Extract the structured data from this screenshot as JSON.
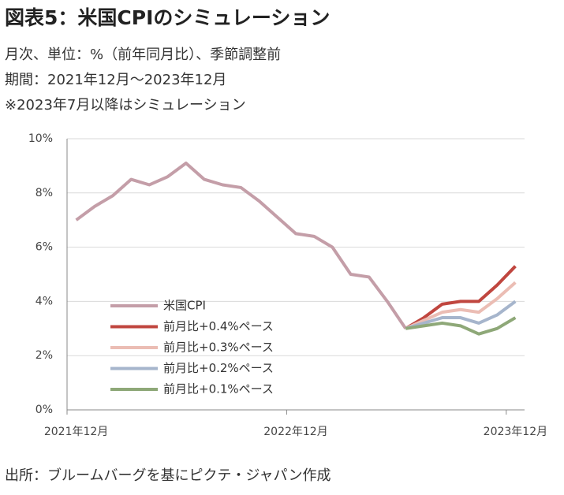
{
  "chart_data": {
    "type": "line",
    "title": "図表5：米国CPIのシミュレーション",
    "subtitles": [
      "月次、単位：%（前年同月比）、季節調整前",
      "期間：2021年12月～2023年12月",
      "※2023年7月以降はシミュレーション"
    ],
    "source": "出所：ブルームバーグを基にピクテ・ジャパン作成",
    "categories": [
      "2021年12月",
      null,
      null,
      null,
      null,
      null,
      null,
      null,
      null,
      null,
      null,
      null,
      "2022年12月",
      null,
      null,
      null,
      null,
      null,
      null,
      null,
      null,
      null,
      null,
      null,
      "2023年12月"
    ],
    "ylim": [
      0,
      10
    ],
    "yticks": [
      {
        "value": 0,
        "label": "0%"
      },
      {
        "value": 2,
        "label": "2%"
      },
      {
        "value": 4,
        "label": "4%"
      },
      {
        "value": 6,
        "label": "6%"
      },
      {
        "value": 8,
        "label": "8%"
      },
      {
        "value": 10,
        "label": "10%"
      }
    ],
    "grid": true,
    "legend": "lower left",
    "series": [
      {
        "name": "米国CPI",
        "color": "#c49ea8",
        "values": [
          7.0,
          7.5,
          7.9,
          8.5,
          8.3,
          8.6,
          9.1,
          8.5,
          8.3,
          8.2,
          7.7,
          7.1,
          6.5,
          6.4,
          6.0,
          5.0,
          4.9,
          4.0,
          3.0,
          null,
          null,
          null,
          null,
          null,
          null
        ]
      },
      {
        "name": "前月比+0.4%ペース",
        "color": "#c0463f",
        "values": [
          null,
          null,
          null,
          null,
          null,
          null,
          null,
          null,
          null,
          null,
          null,
          null,
          null,
          null,
          null,
          null,
          null,
          null,
          3.0,
          3.4,
          3.9,
          4.0,
          4.0,
          4.6,
          5.3
        ]
      },
      {
        "name": "前月比+0.3%ペース",
        "color": "#ebbdb4",
        "values": [
          null,
          null,
          null,
          null,
          null,
          null,
          null,
          null,
          null,
          null,
          null,
          null,
          null,
          null,
          null,
          null,
          null,
          null,
          3.0,
          3.3,
          3.6,
          3.7,
          3.6,
          4.1,
          4.7
        ]
      },
      {
        "name": "前月比+0.2%ペース",
        "color": "#a6b5cc",
        "values": [
          null,
          null,
          null,
          null,
          null,
          null,
          null,
          null,
          null,
          null,
          null,
          null,
          null,
          null,
          null,
          null,
          null,
          null,
          3.0,
          3.2,
          3.4,
          3.4,
          3.2,
          3.5,
          4.0
        ]
      },
      {
        "name": "前月比+0.1%ペース",
        "color": "#8ea878",
        "values": [
          null,
          null,
          null,
          null,
          null,
          null,
          null,
          null,
          null,
          null,
          null,
          null,
          null,
          null,
          null,
          null,
          null,
          null,
          3.0,
          3.1,
          3.2,
          3.1,
          2.8,
          3.0,
          3.4
        ]
      }
    ]
  }
}
